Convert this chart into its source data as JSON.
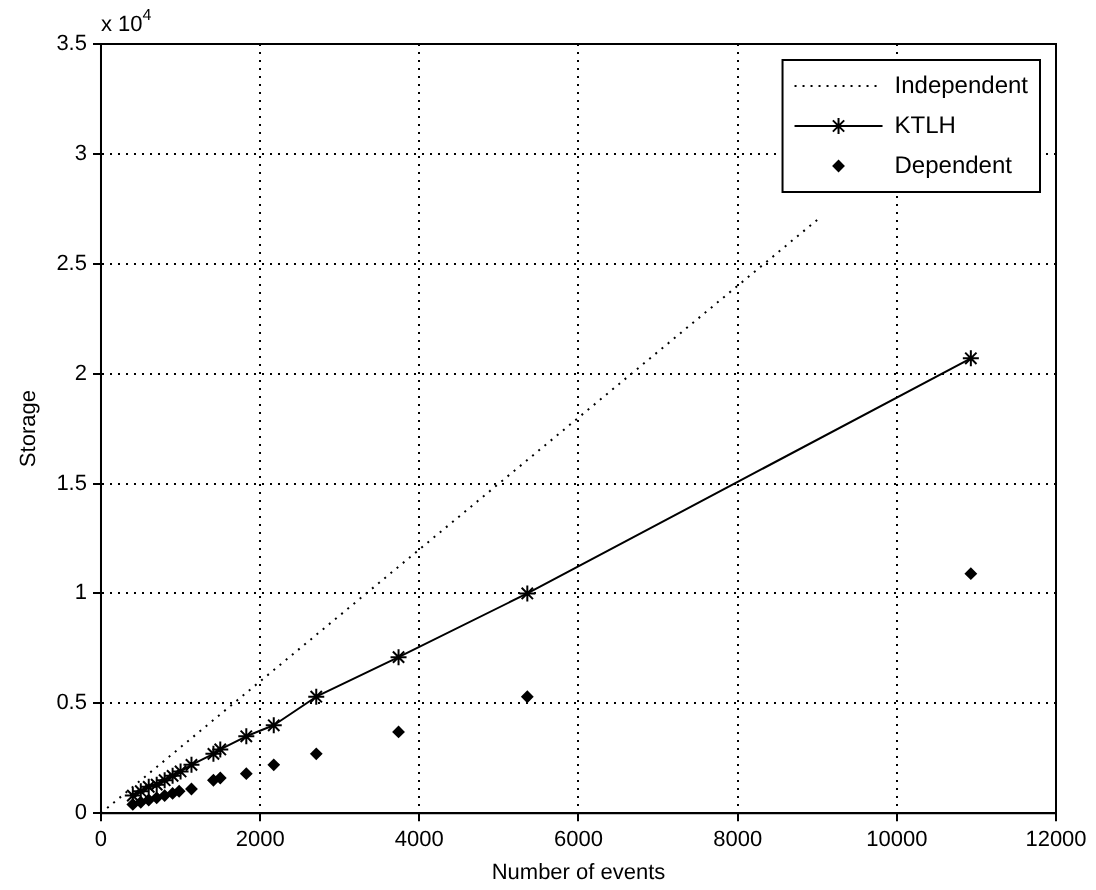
{
  "chart_data": {
    "type": "line",
    "xlabel": "Number of events",
    "ylabel": "Storage",
    "annotations": [
      "x 10$^{4}$"
    ],
    "xlim": [
      0,
      12000
    ],
    "xticks": [
      0,
      2000,
      4000,
      6000,
      8000,
      10000,
      12000
    ],
    "ylim": [
      0,
      3.5
    ],
    "yticks": [
      0,
      0.5,
      1,
      1.5,
      2,
      2.5,
      3,
      3.5
    ],
    "grid": true,
    "legend": "top right",
    "series": [
      {
        "name": "Independent",
        "color": "#000000",
        "line_style": "dotted",
        "marker": "none",
        "x": [
          0,
          9000
        ],
        "values": [
          0,
          2.7
        ]
      },
      {
        "name": "KTLH",
        "color": "#000000",
        "line_style": "solid",
        "marker": "cross",
        "x": [
          400,
          500,
          600,
          700,
          800,
          900,
          1000,
          1137,
          1413,
          1499,
          1826,
          2171,
          2705,
          3739,
          5357,
          10930
        ],
        "values": [
          0.08,
          0.1,
          0.12,
          0.13,
          0.15,
          0.17,
          0.19,
          0.22,
          0.27,
          0.29,
          0.35,
          0.4,
          0.53,
          0.71,
          1.0,
          2.07
        ]
      },
      {
        "name": "Dependent",
        "type": "scatter",
        "color": "#000000",
        "marker": "diamond",
        "x": [
          400,
          500,
          600,
          700,
          800,
          900,
          982,
          1137,
          1413,
          1499,
          1826,
          2171,
          2705,
          3739,
          5357,
          10930
        ],
        "values": [
          0.04,
          0.05,
          0.06,
          0.07,
          0.08,
          0.09,
          0.1,
          0.11,
          0.15,
          0.16,
          0.18,
          0.22,
          0.27,
          0.37,
          0.53,
          1.09
        ]
      }
    ]
  }
}
